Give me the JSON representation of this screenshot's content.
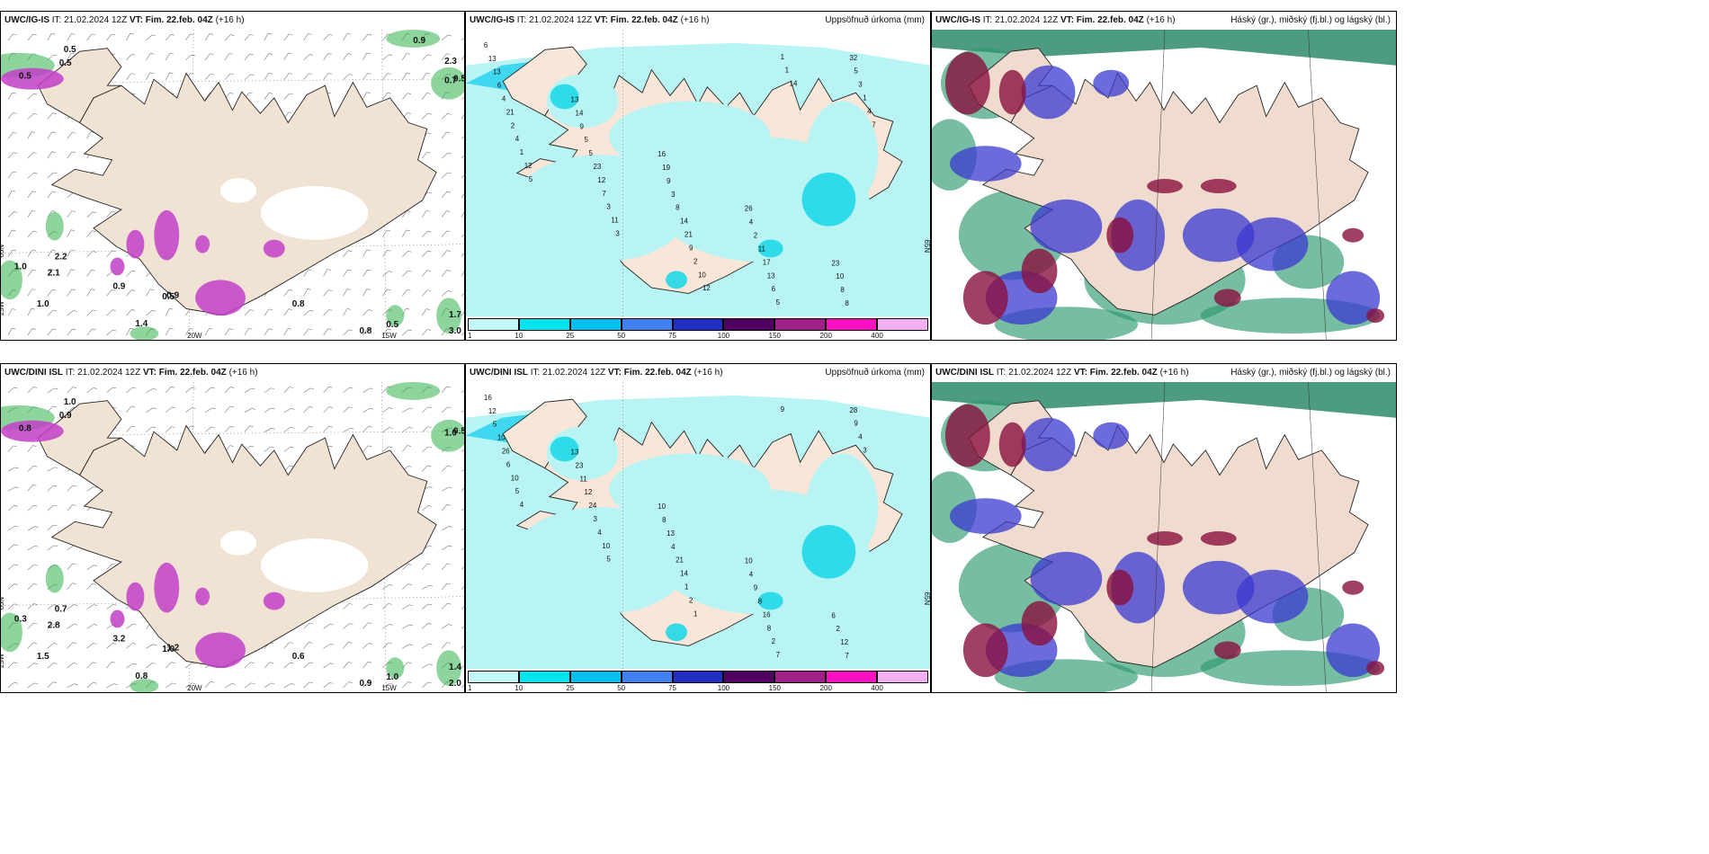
{
  "run": {
    "init": "IT: 21.02.2024 12Z",
    "valid": "VT: Fim. 22.feb. 04Z",
    "lead": "(+16 h)"
  },
  "panels": [
    {
      "model": "UWC/IG-IS",
      "right": ""
    },
    {
      "model": "UWC/IG-IS",
      "right": "Uppsöfnuð úrkoma (mm)"
    },
    {
      "model": "UWC/IG-IS",
      "right": "Háský (gr.), miðský (fj.bl.) og lágský (bl.)"
    },
    {
      "model": "UWC/DINI ISL",
      "right": ""
    },
    {
      "model": "UWC/DINI ISL",
      "right": "Uppsöfnuð úrkoma (mm)"
    },
    {
      "model": "UWC/DINI ISL",
      "right": "Háský (gr.), miðský (fj.bl.) og lágský (bl.)"
    }
  ],
  "colorbar": {
    "ticks": [
      "1",
      "10",
      "25",
      "50",
      "75",
      "100",
      "150",
      "200",
      "400"
    ],
    "colors": [
      "#c4f7f7",
      "#00e5ee",
      "#00c0ef",
      "#4080f0",
      "#2030c0",
      "#500060",
      "#a0208a",
      "#ff10c0",
      "#f0b0f0"
    ]
  },
  "gridlabels": {
    "lon20": "20W",
    "lon15": "15W",
    "lat66": "66N",
    "lat65": "65N",
    "lon25": "25W"
  },
  "snow_labels_top": [
    "0.5",
    "0.5",
    "0.5",
    "1.0",
    "1.4",
    "0.9",
    "0.5",
    "0.8",
    "0.8",
    "0.5",
    "1.0",
    "2.2",
    "1.7",
    "1.7",
    "3.0",
    "0.9",
    "2.1",
    "0.7",
    "0.5",
    "2.3",
    "0.9"
  ],
  "snow_labels_bottom": [
    "0.9",
    "1.0",
    "0.8",
    "1.5",
    "0.8",
    "3.2",
    "1.0",
    "0.6",
    "0.9",
    "1.0",
    "0.3",
    "0.7",
    "0.8",
    "1.4",
    "2.0",
    "1.2",
    "2.8",
    "1.0",
    "0.5"
  ],
  "precip_labels_top": [
    "6",
    "13",
    "16",
    "26",
    "23",
    "13",
    "14",
    "19",
    "4",
    "10",
    "13",
    "9",
    "9",
    "2",
    "8",
    "6",
    "5",
    "3",
    "11",
    "8",
    "4",
    "5",
    "8",
    "17",
    "32",
    "21",
    "23",
    "14",
    "13",
    "5",
    "2",
    "12",
    "21",
    "6",
    "3",
    "4",
    "7",
    "9",
    "5",
    "1",
    "1",
    "3",
    "2",
    "1",
    "4",
    "12",
    "11",
    "10",
    "1",
    "7",
    "5",
    "3",
    "12",
    "14"
  ],
  "precip_labels_bottom": [
    "16",
    "13",
    "10",
    "10",
    "6",
    "12",
    "23",
    "8",
    "4",
    "2",
    "5",
    "11",
    "13",
    "9",
    "12",
    "10",
    "12",
    "4",
    "8",
    "7",
    "26",
    "24",
    "21",
    "16",
    "28",
    "6",
    "3",
    "14",
    "8",
    "9",
    "10",
    "4",
    "1",
    "2",
    "4",
    "5",
    "10",
    "2",
    "7",
    "3",
    "4",
    "5",
    "1",
    "9"
  ]
}
